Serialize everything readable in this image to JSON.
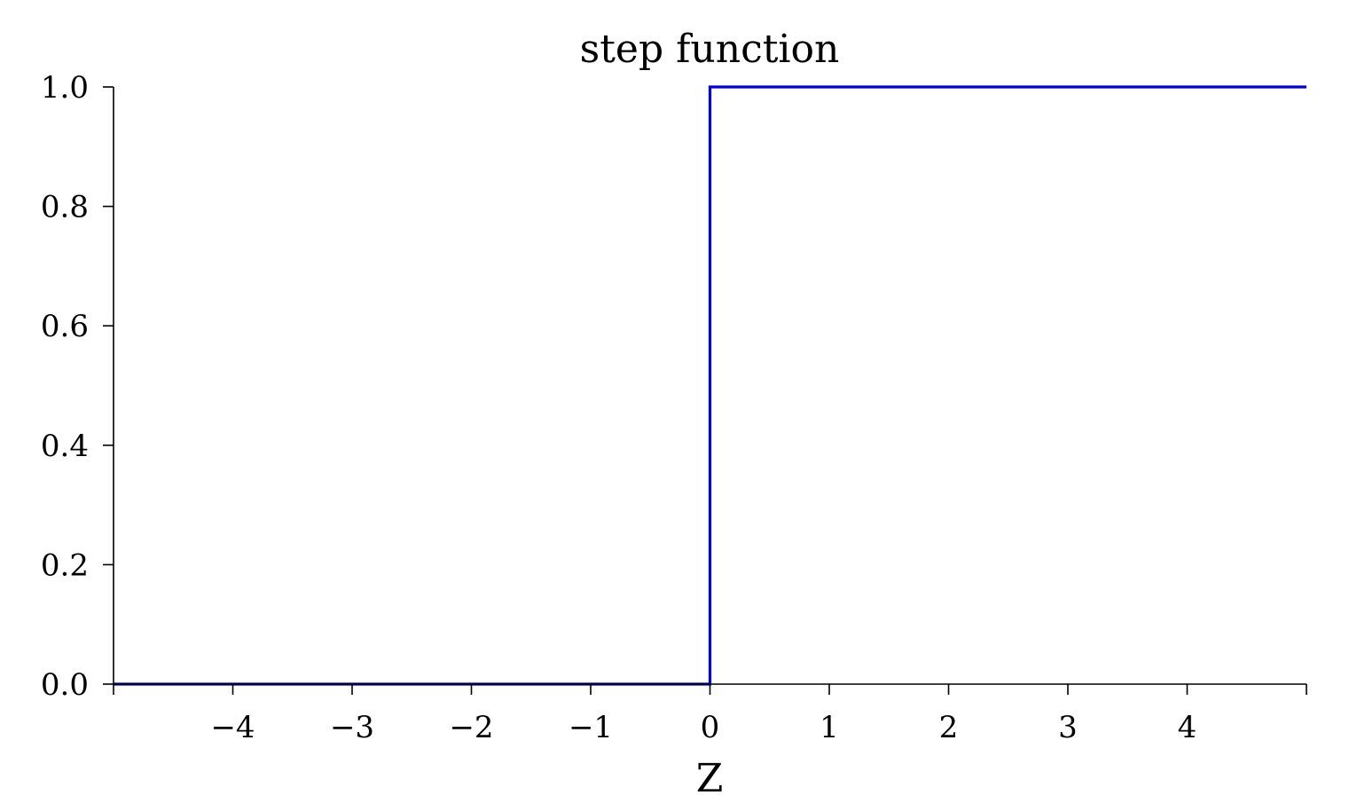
{
  "chart_data": {
    "type": "line",
    "title": "step function",
    "xlabel": "Z",
    "ylabel": "",
    "xlim": [
      -5,
      5
    ],
    "ylim": [
      0,
      1
    ],
    "x_ticks": [
      -4,
      -3,
      -2,
      -1,
      0,
      1,
      2,
      3,
      4
    ],
    "x_tick_labels": [
      "−4",
      "−3",
      "−2",
      "−1",
      "0",
      "1",
      "2",
      "3",
      "4"
    ],
    "y_ticks": [
      0.0,
      0.2,
      0.4,
      0.6,
      0.8,
      1.0
    ],
    "y_tick_labels": [
      "0.0",
      "0.2",
      "0.4",
      "0.6",
      "0.8",
      "1.0"
    ],
    "grid": false,
    "series": [
      {
        "color": "#0000dd",
        "x": [
          -5,
          0,
          0,
          5
        ],
        "y": [
          0,
          0,
          1,
          1
        ]
      }
    ]
  }
}
